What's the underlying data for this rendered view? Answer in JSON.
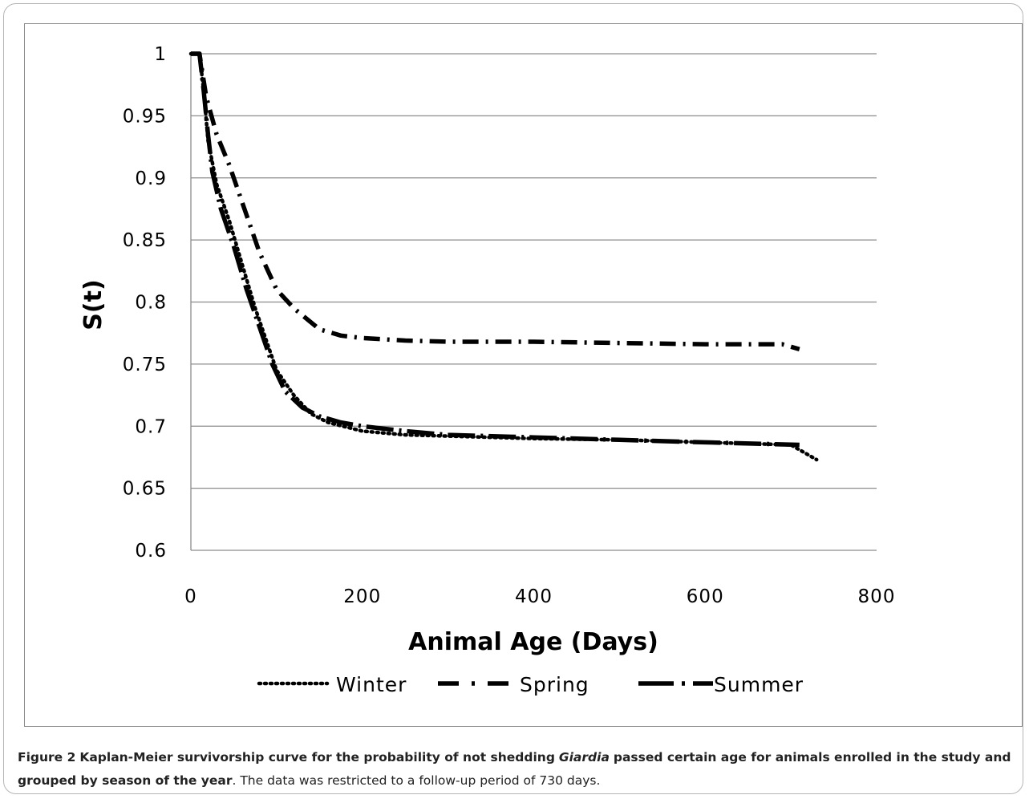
{
  "caption": {
    "label": "Figure 2",
    "title_pre": "Kaplan-Meier survivorship curve for the probability of not shedding",
    "title_italic": "Giardia",
    "title_post": "passed certain age for animals enrolled in the study and grouped by season of the year",
    "rest": ". The data was restricted to a follow-up period of 730 days."
  },
  "chart_data": {
    "type": "line",
    "title": "",
    "xlabel": "Animal Age (Days)",
    "ylabel": "S(t)",
    "xlim": [
      0,
      800
    ],
    "ylim": [
      0.6,
      1.0
    ],
    "xticks": [
      "0",
      "200",
      "400",
      "600",
      "800"
    ],
    "yticks": [
      "0.6",
      "0.65",
      "0.7",
      "0.75",
      "0.8",
      "0.85",
      "0.9",
      "0.95",
      "1"
    ],
    "grid": "horizontal",
    "legend_position": "bottom",
    "series": [
      {
        "name": "Winter",
        "style": "dotted",
        "points": [
          [
            0,
            1.0
          ],
          [
            10,
            1.0
          ],
          [
            15,
            0.97
          ],
          [
            20,
            0.93
          ],
          [
            30,
            0.895
          ],
          [
            45,
            0.865
          ],
          [
            60,
            0.83
          ],
          [
            75,
            0.795
          ],
          [
            90,
            0.765
          ],
          [
            100,
            0.745
          ],
          [
            120,
            0.725
          ],
          [
            140,
            0.71
          ],
          [
            160,
            0.703
          ],
          [
            200,
            0.696
          ],
          [
            250,
            0.693
          ],
          [
            300,
            0.692
          ],
          [
            400,
            0.69
          ],
          [
            500,
            0.689
          ],
          [
            600,
            0.687
          ],
          [
            700,
            0.685
          ],
          [
            730,
            0.673
          ]
        ]
      },
      {
        "name": "Spring",
        "style": "dash-dot",
        "points": [
          [
            0,
            1.0
          ],
          [
            10,
            1.0
          ],
          [
            18,
            0.965
          ],
          [
            30,
            0.935
          ],
          [
            45,
            0.91
          ],
          [
            60,
            0.88
          ],
          [
            80,
            0.84
          ],
          [
            100,
            0.81
          ],
          [
            120,
            0.795
          ],
          [
            150,
            0.778
          ],
          [
            175,
            0.773
          ],
          [
            200,
            0.771
          ],
          [
            250,
            0.769
          ],
          [
            300,
            0.768
          ],
          [
            400,
            0.768
          ],
          [
            500,
            0.767
          ],
          [
            600,
            0.766
          ],
          [
            690,
            0.766
          ],
          [
            710,
            0.762
          ]
        ]
      },
      {
        "name": "Summer",
        "style": "dash-dot-long",
        "points": [
          [
            0,
            1.0
          ],
          [
            10,
            1.0
          ],
          [
            15,
            0.97
          ],
          [
            20,
            0.935
          ],
          [
            25,
            0.905
          ],
          [
            35,
            0.875
          ],
          [
            50,
            0.845
          ],
          [
            65,
            0.81
          ],
          [
            80,
            0.78
          ],
          [
            95,
            0.75
          ],
          [
            110,
            0.728
          ],
          [
            130,
            0.715
          ],
          [
            150,
            0.708
          ],
          [
            175,
            0.703
          ],
          [
            200,
            0.7
          ],
          [
            250,
            0.696
          ],
          [
            300,
            0.693
          ],
          [
            400,
            0.691
          ],
          [
            500,
            0.689
          ],
          [
            600,
            0.687
          ],
          [
            710,
            0.685
          ]
        ]
      }
    ]
  }
}
